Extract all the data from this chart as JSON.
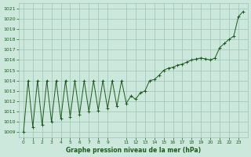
{
  "hours": [
    0,
    0.5,
    1,
    1.5,
    2,
    2.5,
    3,
    3.5,
    4,
    4.5,
    5,
    5.5,
    6,
    6.5,
    7,
    7.5,
    8,
    8.5,
    9,
    9.5,
    10,
    10.5,
    11,
    11.5,
    12,
    12.5,
    13,
    13.5,
    14,
    14.5,
    15,
    15.5,
    16,
    16.5,
    17,
    17.5,
    18,
    18.5,
    19,
    19.5,
    20,
    20.5,
    21,
    21.5,
    22,
    22.5,
    23,
    23.5
  ],
  "pressure": [
    1009.0,
    1014.0,
    1009.5,
    1014.0,
    1009.7,
    1014.0,
    1010.0,
    1014.0,
    1010.3,
    1014.0,
    1010.5,
    1014.0,
    1010.7,
    1014.0,
    1011.0,
    1014.0,
    1011.1,
    1014.0,
    1011.3,
    1014.0,
    1011.5,
    1014.0,
    1011.8,
    1012.5,
    1012.2,
    1012.8,
    1013.0,
    1014.0,
    1014.1,
    1014.5,
    1015.0,
    1015.2,
    1015.3,
    1015.5,
    1015.6,
    1015.8,
    1016.0,
    1016.1,
    1016.2,
    1016.1,
    1016.0,
    1016.2,
    1017.2,
    1017.6,
    1018.0,
    1018.3,
    1020.2,
    1020.7
  ],
  "xlim": [
    -0.5,
    24.0
  ],
  "ylim": [
    1008.5,
    1021.5
  ],
  "yticks": [
    1009,
    1010,
    1011,
    1012,
    1013,
    1014,
    1015,
    1016,
    1017,
    1018,
    1019,
    1020,
    1021
  ],
  "xtick_pos": [
    0,
    1,
    2,
    3,
    4,
    5,
    6,
    7,
    8,
    9,
    11,
    12,
    13,
    14,
    15,
    16,
    17,
    18,
    19,
    20,
    21,
    22,
    23
  ],
  "xtick_labels": [
    "0",
    "1",
    "2",
    "3",
    "4",
    "5",
    "6",
    "7",
    "8",
    "9",
    "11",
    "12",
    "13",
    "14",
    "15",
    "16",
    "17",
    "18",
    "19",
    "20",
    "21",
    "22",
    "23"
  ],
  "xlabel": "Graphe pression niveau de la mer (hPa)",
  "line_color": "#1a5c1a",
  "bg_color": "#cce8dc",
  "grid_color": "#9dc4b4"
}
